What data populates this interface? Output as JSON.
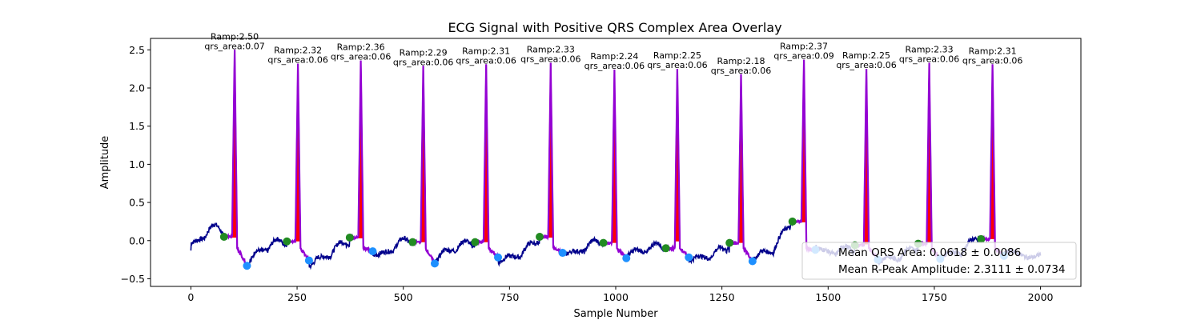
{
  "chart_data": {
    "type": "line",
    "title": "ECG Signal with Positive QRS Complex Area Overlay",
    "xlabel": "Sample Number",
    "ylabel": "Amplitude",
    "xlim": [
      -95,
      2095
    ],
    "ylim": [
      -0.6,
      2.65
    ],
    "xticks": [
      0,
      250,
      500,
      750,
      1000,
      1250,
      1500,
      1750,
      2000
    ],
    "yticks": [
      -0.5,
      0.0,
      0.5,
      1.0,
      1.5,
      2.0,
      2.5
    ],
    "xtick_labels": [
      "0",
      "250",
      "500",
      "750",
      "1000",
      "1250",
      "1500",
      "1750",
      "2000"
    ],
    "ytick_labels": [
      "−0.5",
      "0.0",
      "0.5",
      "1.0",
      "1.5",
      "2.0",
      "2.5"
    ],
    "grid": false,
    "legend_placement": "lower-right",
    "colors": {
      "ecg_line": "#00008b",
      "qrs_segment": "#9400d3",
      "qrs_fill": "#ff0000",
      "q_marker": "#228b22",
      "s_marker": "#1e90ff"
    },
    "beats": [
      {
        "r": 103,
        "amp": 2.5,
        "area": 0.07,
        "q": 78,
        "q_y": 0.05,
        "s": 132,
        "s_y": -0.33,
        "base": 0.04,
        "label_top": "Ramp:2.50",
        "label_bottom": "qrs_area:0.07"
      },
      {
        "r": 252,
        "amp": 2.32,
        "area": 0.06,
        "q": 226,
        "q_y": -0.01,
        "s": 278,
        "s_y": -0.26,
        "base": -0.01,
        "label_top": "Ramp:2.32",
        "label_bottom": "qrs_area:0.06"
      },
      {
        "r": 400,
        "amp": 2.36,
        "area": 0.06,
        "q": 374,
        "q_y": 0.04,
        "s": 428,
        "s_y": -0.14,
        "base": 0.03,
        "label_top": "Ramp:2.36",
        "label_bottom": "qrs_area:0.06"
      },
      {
        "r": 547,
        "amp": 2.29,
        "area": 0.06,
        "q": 522,
        "q_y": -0.02,
        "s": 574,
        "s_y": -0.3,
        "base": -0.02,
        "label_top": "Ramp:2.29",
        "label_bottom": "qrs_area:0.06"
      },
      {
        "r": 695,
        "amp": 2.31,
        "area": 0.06,
        "q": 669,
        "q_y": -0.02,
        "s": 723,
        "s_y": -0.22,
        "base": -0.02,
        "label_top": "Ramp:2.31",
        "label_bottom": "qrs_area:0.06"
      },
      {
        "r": 847,
        "amp": 2.33,
        "area": 0.06,
        "q": 821,
        "q_y": 0.05,
        "s": 875,
        "s_y": -0.16,
        "base": 0.04,
        "label_top": "Ramp:2.33",
        "label_bottom": "qrs_area:0.06"
      },
      {
        "r": 997,
        "amp": 2.24,
        "area": 0.06,
        "q": 971,
        "q_y": -0.03,
        "s": 1025,
        "s_y": -0.23,
        "base": -0.03,
        "label_top": "Ramp:2.24",
        "label_bottom": "qrs_area:0.06"
      },
      {
        "r": 1145,
        "amp": 2.25,
        "area": 0.06,
        "q": 1118,
        "q_y": -0.1,
        "s": 1172,
        "s_y": -0.22,
        "base": -0.01,
        "label_top": "Ramp:2.25",
        "label_bottom": "qrs_area:0.06"
      },
      {
        "r": 1295,
        "amp": 2.18,
        "area": 0.06,
        "q": 1268,
        "q_y": -0.03,
        "s": 1322,
        "s_y": -0.27,
        "base": -0.03,
        "label_top": "Ramp:2.18",
        "label_bottom": "qrs_area:0.06"
      },
      {
        "r": 1443,
        "amp": 2.37,
        "area": 0.09,
        "q": 1416,
        "q_y": 0.25,
        "s": 1470,
        "s_y": -0.12,
        "base": 0.24,
        "label_top": "Ramp:2.37",
        "label_bottom": "qrs_area:0.09"
      },
      {
        "r": 1590,
        "amp": 2.25,
        "area": 0.06,
        "q": 1563,
        "q_y": -0.06,
        "s": 1617,
        "s_y": -0.25,
        "base": -0.05,
        "label_top": "Ramp:2.25",
        "label_bottom": "qrs_area:0.06"
      },
      {
        "r": 1738,
        "amp": 2.33,
        "area": 0.06,
        "q": 1712,
        "q_y": -0.04,
        "s": 1764,
        "s_y": -0.24,
        "base": -0.03,
        "label_top": "Ramp:2.33",
        "label_bottom": "qrs_area:0.06"
      },
      {
        "r": 1887,
        "amp": 2.31,
        "area": 0.06,
        "q": 1860,
        "q_y": 0.02,
        "s": 1914,
        "s_y": -0.2,
        "base": 0.02,
        "label_top": "Ramp:2.31",
        "label_bottom": "qrs_area:0.06"
      }
    ],
    "legend": [
      "Mean QRS Area: 0.0618 ± 0.0086",
      "Mean R-Peak Amplitude: 2.3111 ± 0.0734"
    ]
  }
}
